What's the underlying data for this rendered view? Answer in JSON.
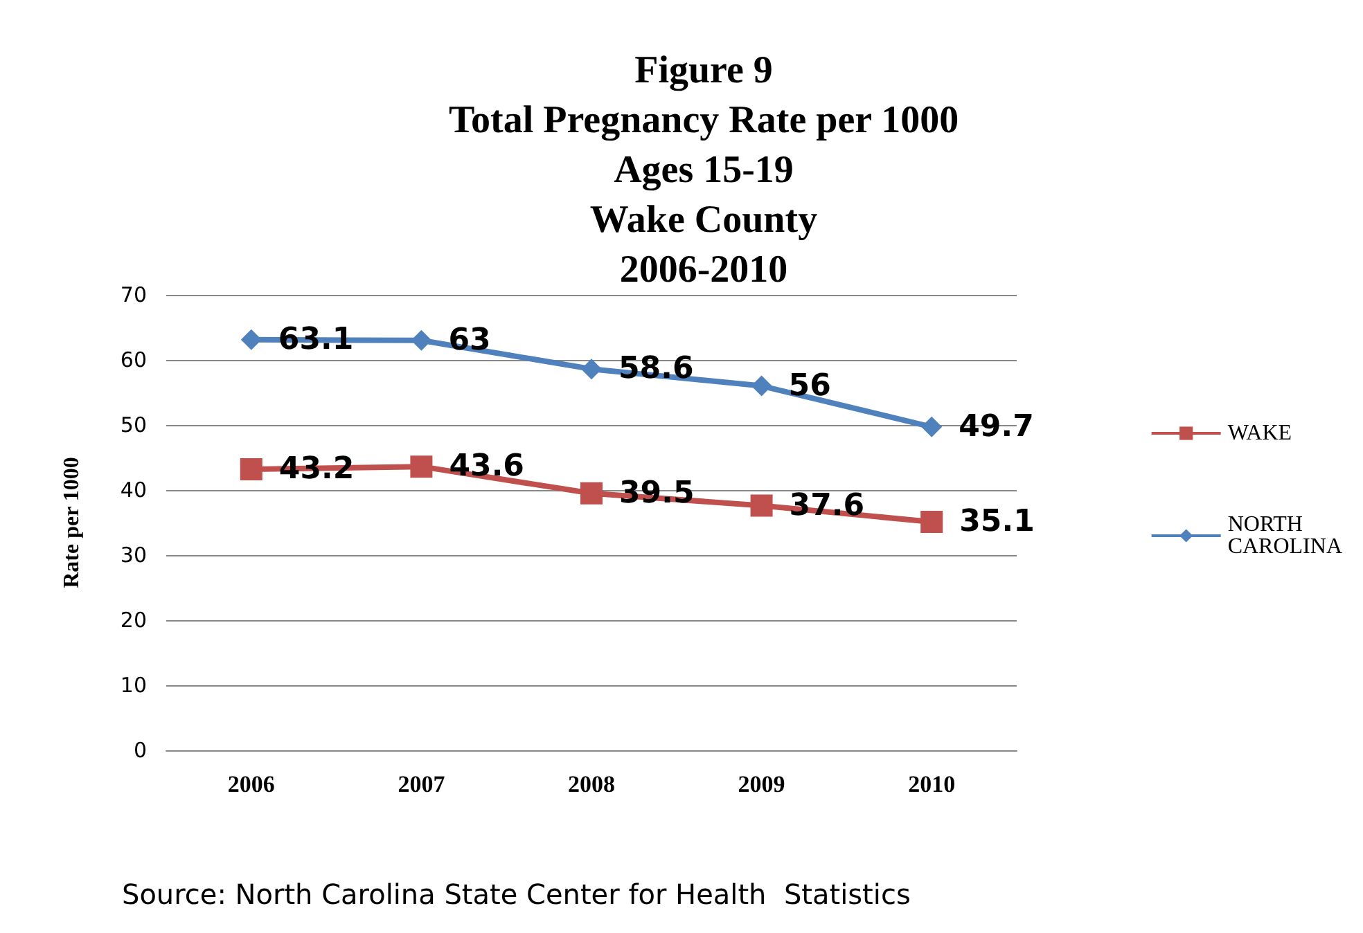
{
  "chart_data": {
    "type": "line",
    "title": "Figure 9\nTotal Pregnancy Rate per 1000\nAges 15-19\nWake County\n2006-2010",
    "ylabel": "Rate per 1000",
    "categories": [
      "2006",
      "2007",
      "2008",
      "2009",
      "2010"
    ],
    "series": [
      {
        "name": "WAKE",
        "color": "#c0504d",
        "marker": "square",
        "values": [
          43.2,
          43.6,
          39.5,
          37.6,
          35.1
        ]
      },
      {
        "name": "NORTH CAROLINA",
        "color": "#4f81bd",
        "marker": "diamond",
        "values": [
          63.1,
          63,
          58.6,
          56,
          49.7
        ]
      }
    ],
    "ylim": [
      0,
      70
    ],
    "yticks": [
      0,
      10,
      20,
      30,
      40,
      50,
      60,
      70
    ],
    "grid": "y",
    "legend": "right",
    "data_labels": true,
    "annotations": [
      "Source: North Carolina State Center for Health  Statistics"
    ]
  }
}
